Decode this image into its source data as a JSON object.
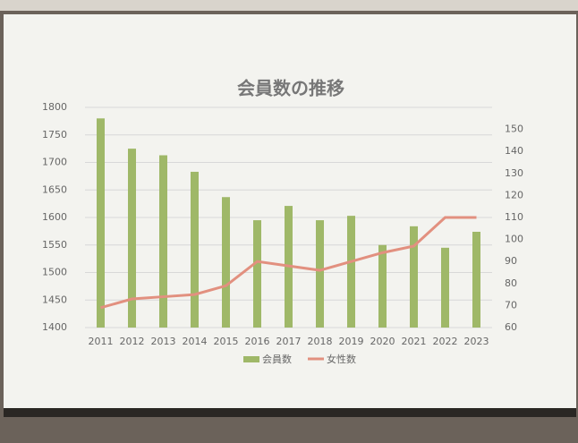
{
  "chart_data": {
    "type": "bar",
    "title": "会員数の推移",
    "categories": [
      "2011",
      "2012",
      "2013",
      "2014",
      "2015",
      "2016",
      "2017",
      "2018",
      "2019",
      "2020",
      "2021",
      "2022",
      "2023"
    ],
    "series": [
      {
        "name": "会員数",
        "type": "bar",
        "color": "#9fb868",
        "values": [
          1780,
          1725,
          1713,
          1683,
          1637,
          1595,
          1621,
          1595,
          1603,
          1550,
          1584,
          1545,
          1574
        ]
      },
      {
        "name": "女性数",
        "type": "line",
        "axis": "y2",
        "color": "#e2907f",
        "values": [
          69,
          73,
          74,
          75,
          79,
          90,
          88,
          86,
          90,
          94,
          97,
          110,
          110
        ]
      }
    ],
    "ylim": [
      1400,
      1800
    ],
    "yticks": [
      1400,
      1450,
      1500,
      1550,
      1600,
      1650,
      1700,
      1750,
      1800
    ],
    "y2lim": [
      60,
      160
    ],
    "y2ticks": [
      60,
      70,
      80,
      90,
      100,
      110,
      120,
      130,
      140,
      150
    ],
    "grid": true,
    "legend": "bottom"
  }
}
